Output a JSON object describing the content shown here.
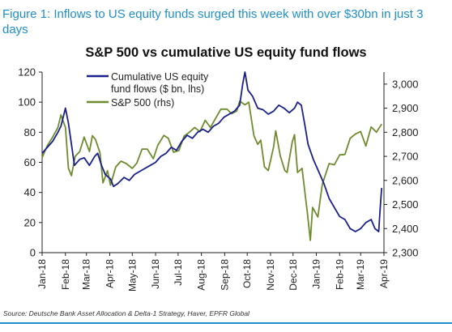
{
  "figure": {
    "title": "Figure 1: Inflows to US equity funds surged this week with over $30bn in just 3 days",
    "source": "Source: Deutsche Bank Asset Allocation & Delta-1 Strategy, Haver, EPFR Global"
  },
  "chart_data": {
    "type": "line",
    "title": "S&P 500 vs cumulative US equity fund flows",
    "x_labels": [
      "Jan-18",
      "Feb-18",
      "Mar-18",
      "Apr-18",
      "May-18",
      "Jun-18",
      "Jul-18",
      "Aug-18",
      "Sep-18",
      "Oct-18",
      "Nov-18",
      "Dec-18",
      "Jan-19",
      "Feb-19",
      "Mar-19",
      "Apr-19"
    ],
    "xlim": [
      "2018-01-01",
      "2019-04-01"
    ],
    "y_left": {
      "ticks": [
        0,
        20,
        40,
        60,
        80,
        100,
        120
      ],
      "ylim": [
        0,
        120
      ]
    },
    "y_right": {
      "ticks": [
        "2,300",
        "2,400",
        "2,500",
        "2,600",
        "2,700",
        "2,800",
        "2,900",
        "3,000"
      ],
      "ylim": [
        2300,
        3050
      ]
    },
    "legend": {
      "placement": "top"
    },
    "colors": {
      "flows": "#1a1f8c",
      "spx": "#6e8c2e"
    },
    "series": [
      {
        "name": "Cumulative US equity fund flows ($ bn, lhs)",
        "name_lines": [
          "Cumulative US equity",
          "fund flows ($ bn, lhs)"
        ],
        "axis": "left",
        "points": [
          [
            "2018-01-01",
            66
          ],
          [
            "2018-01-08",
            70
          ],
          [
            "2018-01-15",
            74
          ],
          [
            "2018-01-22",
            80
          ],
          [
            "2018-01-26",
            84
          ],
          [
            "2018-02-01",
            96
          ],
          [
            "2018-02-05",
            86
          ],
          [
            "2018-02-09",
            72
          ],
          [
            "2018-02-13",
            58
          ],
          [
            "2018-02-20",
            62
          ],
          [
            "2018-02-26",
            63
          ],
          [
            "2018-03-05",
            58
          ],
          [
            "2018-03-12",
            64
          ],
          [
            "2018-03-16",
            66
          ],
          [
            "2018-03-21",
            58
          ],
          [
            "2018-03-26",
            52
          ],
          [
            "2018-04-02",
            49
          ],
          [
            "2018-04-06",
            44
          ],
          [
            "2018-04-12",
            46
          ],
          [
            "2018-04-20",
            50
          ],
          [
            "2018-04-27",
            48
          ],
          [
            "2018-05-04",
            52
          ],
          [
            "2018-05-11",
            54
          ],
          [
            "2018-05-18",
            56
          ],
          [
            "2018-05-25",
            58
          ],
          [
            "2018-06-01",
            60
          ],
          [
            "2018-06-08",
            64
          ],
          [
            "2018-06-15",
            66
          ],
          [
            "2018-06-22",
            70
          ],
          [
            "2018-06-29",
            68
          ],
          [
            "2018-07-06",
            74
          ],
          [
            "2018-07-13",
            78
          ],
          [
            "2018-07-20",
            76
          ],
          [
            "2018-07-27",
            80
          ],
          [
            "2018-08-03",
            82
          ],
          [
            "2018-08-10",
            80
          ],
          [
            "2018-08-17",
            84
          ],
          [
            "2018-08-24",
            86
          ],
          [
            "2018-08-31",
            90
          ],
          [
            "2018-09-07",
            92
          ],
          [
            "2018-09-14",
            94
          ],
          [
            "2018-09-21",
            98
          ],
          [
            "2018-09-25",
            112
          ],
          [
            "2018-09-28",
            120
          ],
          [
            "2018-10-02",
            108
          ],
          [
            "2018-10-08",
            104
          ],
          [
            "2018-10-15",
            96
          ],
          [
            "2018-10-22",
            95
          ],
          [
            "2018-10-29",
            92
          ],
          [
            "2018-11-05",
            94
          ],
          [
            "2018-11-12",
            98
          ],
          [
            "2018-11-19",
            96
          ],
          [
            "2018-11-26",
            93
          ],
          [
            "2018-12-03",
            96
          ],
          [
            "2018-12-07",
            100
          ],
          [
            "2018-12-12",
            98
          ],
          [
            "2018-12-17",
            84
          ],
          [
            "2018-12-21",
            72
          ],
          [
            "2018-12-28",
            62
          ],
          [
            "2019-01-04",
            54
          ],
          [
            "2019-01-11",
            46
          ],
          [
            "2019-01-18",
            36
          ],
          [
            "2019-01-25",
            30
          ],
          [
            "2019-02-01",
            24
          ],
          [
            "2019-02-08",
            22
          ],
          [
            "2019-02-15",
            16
          ],
          [
            "2019-02-22",
            14
          ],
          [
            "2019-03-01",
            16
          ],
          [
            "2019-03-08",
            20
          ],
          [
            "2019-03-15",
            22
          ],
          [
            "2019-03-20",
            16
          ],
          [
            "2019-03-25",
            14
          ],
          [
            "2019-03-27",
            30
          ],
          [
            "2019-03-29",
            43
          ]
        ]
      },
      {
        "name": "S&P 500 (rhs)",
        "axis": "right",
        "points": [
          [
            "2018-01-01",
            2695
          ],
          [
            "2018-01-08",
            2745
          ],
          [
            "2018-01-15",
            2780
          ],
          [
            "2018-01-22",
            2820
          ],
          [
            "2018-01-26",
            2872
          ],
          [
            "2018-02-01",
            2820
          ],
          [
            "2018-02-05",
            2650
          ],
          [
            "2018-02-09",
            2620
          ],
          [
            "2018-02-14",
            2700
          ],
          [
            "2018-02-20",
            2720
          ],
          [
            "2018-02-26",
            2780
          ],
          [
            "2018-03-05",
            2720
          ],
          [
            "2018-03-09",
            2786
          ],
          [
            "2018-03-13",
            2770
          ],
          [
            "2018-03-19",
            2715
          ],
          [
            "2018-03-23",
            2590
          ],
          [
            "2018-03-29",
            2640
          ],
          [
            "2018-04-02",
            2580
          ],
          [
            "2018-04-09",
            2656
          ],
          [
            "2018-04-16",
            2680
          ],
          [
            "2018-04-23",
            2670
          ],
          [
            "2018-05-01",
            2650
          ],
          [
            "2018-05-07",
            2672
          ],
          [
            "2018-05-14",
            2730
          ],
          [
            "2018-05-21",
            2730
          ],
          [
            "2018-05-29",
            2690
          ],
          [
            "2018-06-04",
            2746
          ],
          [
            "2018-06-12",
            2787
          ],
          [
            "2018-06-18",
            2775
          ],
          [
            "2018-06-25",
            2717
          ],
          [
            "2018-07-02",
            2724
          ],
          [
            "2018-07-09",
            2784
          ],
          [
            "2018-07-16",
            2800
          ],
          [
            "2018-07-23",
            2820
          ],
          [
            "2018-07-30",
            2802
          ],
          [
            "2018-08-06",
            2850
          ],
          [
            "2018-08-13",
            2820
          ],
          [
            "2018-08-20",
            2858
          ],
          [
            "2018-08-27",
            2896
          ],
          [
            "2018-09-04",
            2896
          ],
          [
            "2018-09-10",
            2877
          ],
          [
            "2018-09-17",
            2888
          ],
          [
            "2018-09-21",
            2929
          ],
          [
            "2018-09-28",
            2914
          ],
          [
            "2018-10-03",
            2925
          ],
          [
            "2018-10-10",
            2785
          ],
          [
            "2018-10-15",
            2750
          ],
          [
            "2018-10-19",
            2767
          ],
          [
            "2018-10-24",
            2656
          ],
          [
            "2018-10-29",
            2641
          ],
          [
            "2018-11-05",
            2738
          ],
          [
            "2018-11-08",
            2806
          ],
          [
            "2018-11-14",
            2702
          ],
          [
            "2018-11-20",
            2641
          ],
          [
            "2018-11-23",
            2633
          ],
          [
            "2018-11-30",
            2760
          ],
          [
            "2018-12-03",
            2790
          ],
          [
            "2018-12-07",
            2633
          ],
          [
            "2018-12-13",
            2650
          ],
          [
            "2018-12-17",
            2545
          ],
          [
            "2018-12-20",
            2467
          ],
          [
            "2018-12-24",
            2351
          ],
          [
            "2018-12-27",
            2488
          ],
          [
            "2019-01-03",
            2448
          ],
          [
            "2019-01-09",
            2584
          ],
          [
            "2019-01-18",
            2670
          ],
          [
            "2019-01-25",
            2665
          ],
          [
            "2019-02-01",
            2706
          ],
          [
            "2019-02-08",
            2708
          ],
          [
            "2019-02-15",
            2775
          ],
          [
            "2019-02-22",
            2793
          ],
          [
            "2019-03-01",
            2803
          ],
          [
            "2019-03-08",
            2743
          ],
          [
            "2019-03-15",
            2822
          ],
          [
            "2019-03-22",
            2800
          ],
          [
            "2019-03-29",
            2834
          ]
        ]
      }
    ]
  }
}
